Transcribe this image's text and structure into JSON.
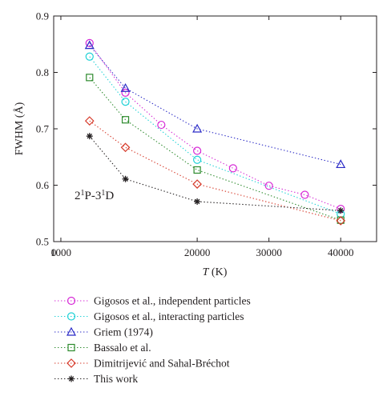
{
  "chart_data": {
    "type": "scatter",
    "xlabel": {
      "var": "T",
      "unit": " (K)"
    },
    "ylabel": "FWHM (Å)",
    "xlim": [
      0,
      45000
    ],
    "ylim": [
      0.5,
      0.9
    ],
    "xticks": [
      0,
      1000,
      20000,
      30000,
      40000
    ],
    "xtick_labels": [
      "0",
      "1000",
      "20000",
      "30000",
      "40000"
    ],
    "yticks": [
      0.5,
      0.6,
      0.7,
      0.8,
      0.9
    ],
    "ytick_labels": [
      "0.5",
      "0.6",
      "0.7",
      "0.8",
      "0.9"
    ],
    "annotation": {
      "text": "21P-31D",
      "x": 2500,
      "y": 0.64
    },
    "grid": false,
    "legend_position": "below",
    "series": [
      {
        "name": "Gigosos et al., independent particles",
        "color": "#d62ad6",
        "marker": "circle",
        "x": [
          5000,
          10000,
          15000,
          20000,
          25000,
          30000,
          35000,
          40000
        ],
        "y": [
          0.852,
          0.764,
          0.707,
          0.661,
          0.63,
          0.599,
          0.583,
          0.558
        ]
      },
      {
        "name": "Gigosos et al., interacting particles",
        "color": "#1fd1d6",
        "marker": "circle",
        "x": [
          5000,
          10000,
          20000,
          40000
        ],
        "y": [
          0.828,
          0.748,
          0.645,
          0.549
        ]
      },
      {
        "name": "Griem (1974)",
        "color": "#2b2bc6",
        "marker": "triangle",
        "x": [
          5000,
          10000,
          20000,
          40000
        ],
        "y": [
          0.848,
          0.772,
          0.7,
          0.637
        ]
      },
      {
        "name": "Bassalo et al.",
        "color": "#2c8a2c",
        "marker": "square",
        "x": [
          5000,
          10000,
          20000,
          40000
        ],
        "y": [
          0.791,
          0.716,
          0.627,
          0.538
        ]
      },
      {
        "name": "Dimitrijević and Sahal-Bréchot",
        "color": "#d63a2a",
        "marker": "diamond",
        "x": [
          5000,
          10000,
          20000,
          40000
        ],
        "y": [
          0.714,
          0.667,
          0.602,
          0.537
        ]
      },
      {
        "name": "This work",
        "color": "#231f20",
        "marker": "star",
        "x": [
          5000,
          10000,
          20000,
          40000
        ],
        "y": [
          0.687,
          0.611,
          0.571,
          0.555
        ]
      }
    ]
  }
}
